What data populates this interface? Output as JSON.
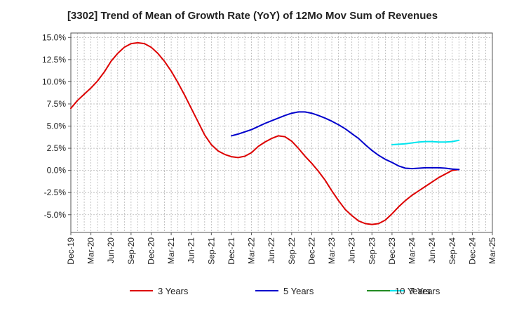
{
  "chart_data": {
    "type": "line",
    "title": "[3302]  Trend of Mean of Growth Rate (YoY) of 12Mo Mov Sum of Revenues",
    "xlabel": "",
    "ylabel": "",
    "ylim": [
      -7.0,
      15.5
    ],
    "y_ticks": [
      -5.0,
      -2.5,
      0.0,
      2.5,
      5.0,
      7.5,
      10.0,
      12.5,
      15.0
    ],
    "y_tick_labels": [
      "-5.0%",
      "-2.5%",
      "0.0%",
      "2.5%",
      "5.0%",
      "7.5%",
      "10.0%",
      "12.5%",
      "15.0%"
    ],
    "x_tick_labels": [
      "Dec-19",
      "Mar-20",
      "Jun-20",
      "Sep-20",
      "Dec-20",
      "Mar-21",
      "Jun-21",
      "Sep-21",
      "Dec-21",
      "Mar-22",
      "Jun-22",
      "Sep-22",
      "Dec-22",
      "Mar-23",
      "Jun-23",
      "Sep-23",
      "Dec-23",
      "Mar-24",
      "Jun-24",
      "Sep-24",
      "Dec-24",
      "Mar-25"
    ],
    "grid": true,
    "legend_position": "bottom",
    "series": [
      {
        "name": "3 Years",
        "color": "#dd0000",
        "points": [
          [
            0,
            7.0
          ],
          [
            1,
            7.9
          ],
          [
            2,
            8.6
          ],
          [
            3,
            9.3
          ],
          [
            4,
            10.1
          ],
          [
            5,
            11.1
          ],
          [
            6,
            12.3
          ],
          [
            7,
            13.2
          ],
          [
            8,
            13.9
          ],
          [
            9,
            14.3
          ],
          [
            10,
            14.4
          ],
          [
            11,
            14.3
          ],
          [
            12,
            13.9
          ],
          [
            13,
            13.2
          ],
          [
            14,
            12.3
          ],
          [
            15,
            11.2
          ],
          [
            16,
            9.9
          ],
          [
            17,
            8.5
          ],
          [
            18,
            7.0
          ],
          [
            19,
            5.5
          ],
          [
            20,
            4.0
          ],
          [
            21,
            2.9
          ],
          [
            22,
            2.2
          ],
          [
            23,
            1.8
          ],
          [
            24,
            1.55
          ],
          [
            25,
            1.45
          ],
          [
            26,
            1.6
          ],
          [
            27,
            2.0
          ],
          [
            28,
            2.7
          ],
          [
            29,
            3.2
          ],
          [
            30,
            3.6
          ],
          [
            31,
            3.9
          ],
          [
            32,
            3.8
          ],
          [
            33,
            3.3
          ],
          [
            34,
            2.5
          ],
          [
            35,
            1.6
          ],
          [
            36,
            0.8
          ],
          [
            37,
            -0.1
          ],
          [
            38,
            -1.1
          ],
          [
            39,
            -2.3
          ],
          [
            40,
            -3.4
          ],
          [
            41,
            -4.4
          ],
          [
            42,
            -5.1
          ],
          [
            43,
            -5.7
          ],
          [
            44,
            -6.0
          ],
          [
            45,
            -6.1
          ],
          [
            46,
            -6.0
          ],
          [
            47,
            -5.6
          ],
          [
            48,
            -4.9
          ],
          [
            49,
            -4.1
          ],
          [
            50,
            -3.4
          ],
          [
            51,
            -2.8
          ],
          [
            52,
            -2.3
          ],
          [
            53,
            -1.8
          ],
          [
            54,
            -1.3
          ],
          [
            55,
            -0.8
          ],
          [
            56,
            -0.4
          ],
          [
            57,
            0.0
          ],
          [
            58,
            0.1
          ]
        ]
      },
      {
        "name": "5 Years",
        "color": "#0000cc",
        "points": [
          [
            24,
            3.9
          ],
          [
            25,
            4.1
          ],
          [
            26,
            4.35
          ],
          [
            27,
            4.6
          ],
          [
            28,
            4.95
          ],
          [
            29,
            5.3
          ],
          [
            30,
            5.6
          ],
          [
            31,
            5.9
          ],
          [
            32,
            6.2
          ],
          [
            33,
            6.45
          ],
          [
            34,
            6.6
          ],
          [
            35,
            6.6
          ],
          [
            36,
            6.45
          ],
          [
            37,
            6.2
          ],
          [
            38,
            5.9
          ],
          [
            39,
            5.55
          ],
          [
            40,
            5.15
          ],
          [
            41,
            4.7
          ],
          [
            42,
            4.15
          ],
          [
            43,
            3.6
          ],
          [
            44,
            2.9
          ],
          [
            45,
            2.25
          ],
          [
            46,
            1.7
          ],
          [
            47,
            1.25
          ],
          [
            48,
            0.9
          ],
          [
            49,
            0.5
          ],
          [
            50,
            0.25
          ],
          [
            51,
            0.2
          ],
          [
            52,
            0.25
          ],
          [
            53,
            0.3
          ],
          [
            54,
            0.3
          ],
          [
            55,
            0.3
          ],
          [
            56,
            0.25
          ],
          [
            57,
            0.15
          ],
          [
            58,
            0.1
          ]
        ]
      },
      {
        "name": "7 Years",
        "color": "#00e5ee",
        "points": [
          [
            48,
            2.9
          ],
          [
            49,
            2.95
          ],
          [
            50,
            3.0
          ],
          [
            51,
            3.1
          ],
          [
            52,
            3.2
          ],
          [
            53,
            3.25
          ],
          [
            54,
            3.25
          ],
          [
            55,
            3.2
          ],
          [
            56,
            3.2
          ],
          [
            57,
            3.25
          ],
          [
            58,
            3.4
          ]
        ]
      },
      {
        "name": "10 Years",
        "color": "#228b22",
        "points": []
      }
    ]
  }
}
